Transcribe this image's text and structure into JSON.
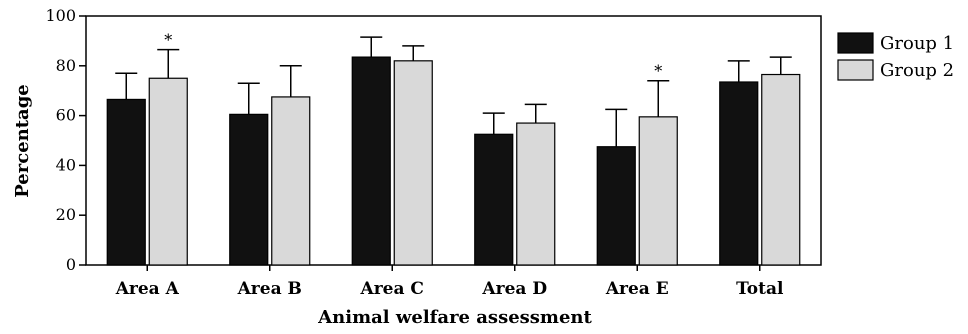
{
  "chart_data": {
    "type": "bar",
    "xlabel": "Animal welfare assessment",
    "ylabel": "Percentage",
    "ylim": [
      0,
      100
    ],
    "yticks": [
      0,
      20,
      40,
      60,
      80,
      100
    ],
    "categories": [
      "Area A",
      "Area B",
      "Area C",
      "Area D",
      "Area E",
      "Total"
    ],
    "series": [
      {
        "name": "Group 1",
        "color": "#111111",
        "values": [
          66.5,
          60.5,
          83.5,
          52.5,
          47.5,
          73.5
        ],
        "errors": [
          10.5,
          12.5,
          8.0,
          8.5,
          15.0,
          8.5
        ]
      },
      {
        "name": "Group 2",
        "color": "#d9d9d9",
        "values": [
          75.0,
          67.5,
          82.0,
          57.0,
          59.5,
          76.5
        ],
        "errors": [
          11.5,
          12.5,
          6.0,
          7.5,
          14.5,
          7.0
        ]
      }
    ],
    "significance": [
      {
        "category_index": 0,
        "series_index": 1,
        "label": "*"
      },
      {
        "category_index": 4,
        "series_index": 1,
        "label": "*"
      }
    ],
    "legend_position": "right",
    "grid": false
  }
}
